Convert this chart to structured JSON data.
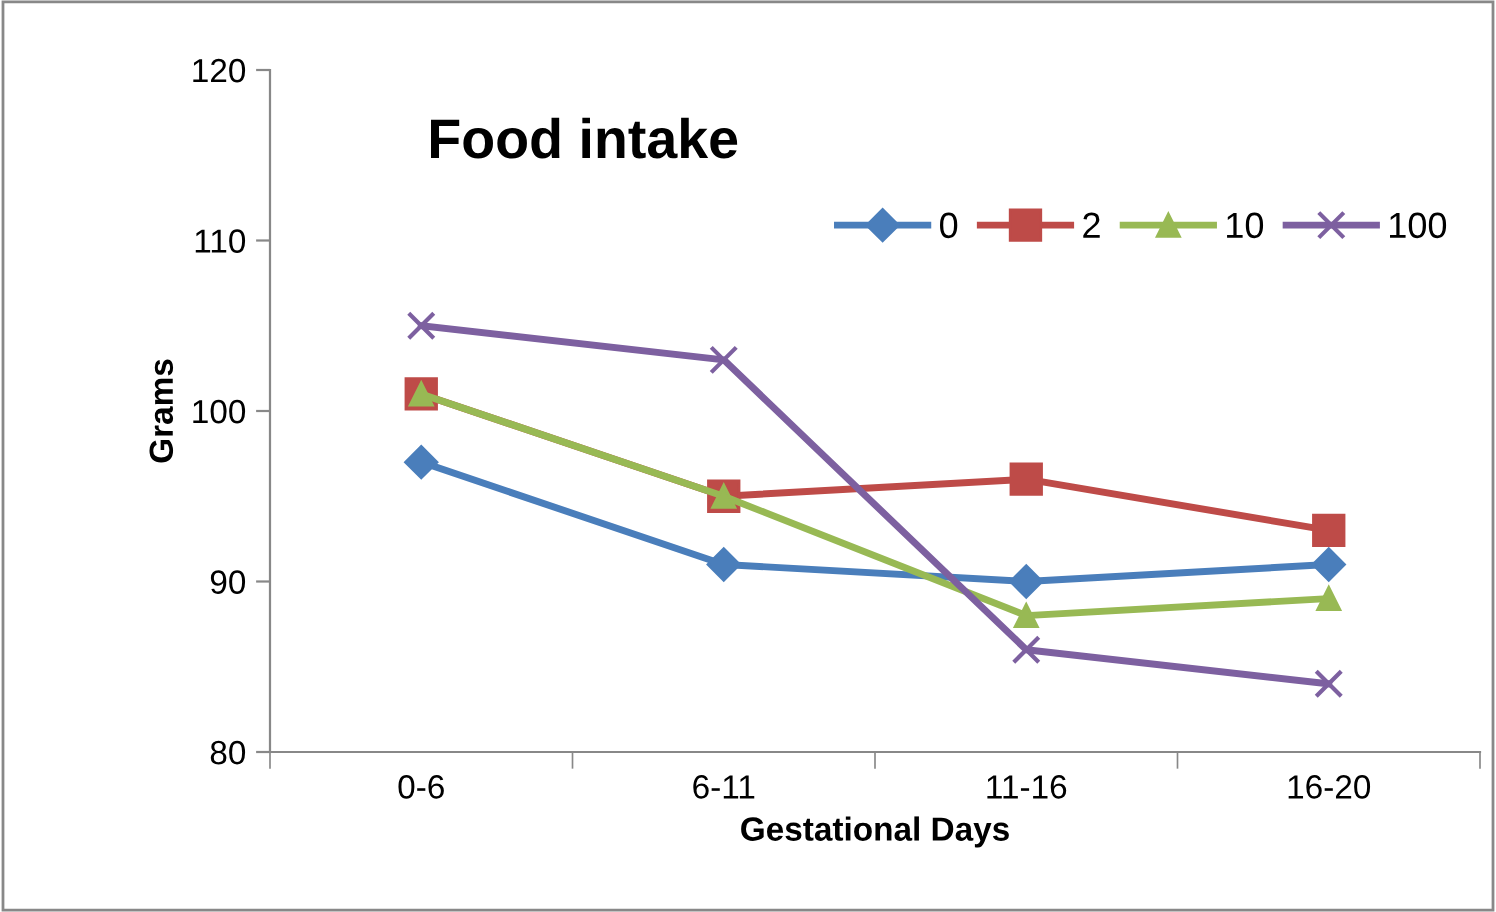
{
  "chart_data": {
    "type": "line",
    "title": "Food intake",
    "xlabel": "Gestational Days",
    "ylabel": "Grams",
    "categories": [
      "0-6",
      "6-11",
      "11-16",
      "16-20"
    ],
    "series": [
      {
        "name": "0",
        "color": "#4a7ebb",
        "marker": "diamond",
        "values": [
          97,
          91,
          90,
          91
        ]
      },
      {
        "name": "2",
        "color": "#be4b48",
        "marker": "square",
        "values": [
          101,
          95,
          96,
          93
        ]
      },
      {
        "name": "10",
        "color": "#98b954",
        "marker": "triangle",
        "values": [
          101,
          95,
          88,
          89
        ]
      },
      {
        "name": "100",
        "color": "#7d60a0",
        "marker": "cross",
        "values": [
          105,
          103,
          86,
          84
        ]
      }
    ],
    "ylim": [
      80,
      120
    ],
    "yticks": [
      80,
      90,
      100,
      110,
      120
    ],
    "grid": false,
    "legend": "top right"
  }
}
